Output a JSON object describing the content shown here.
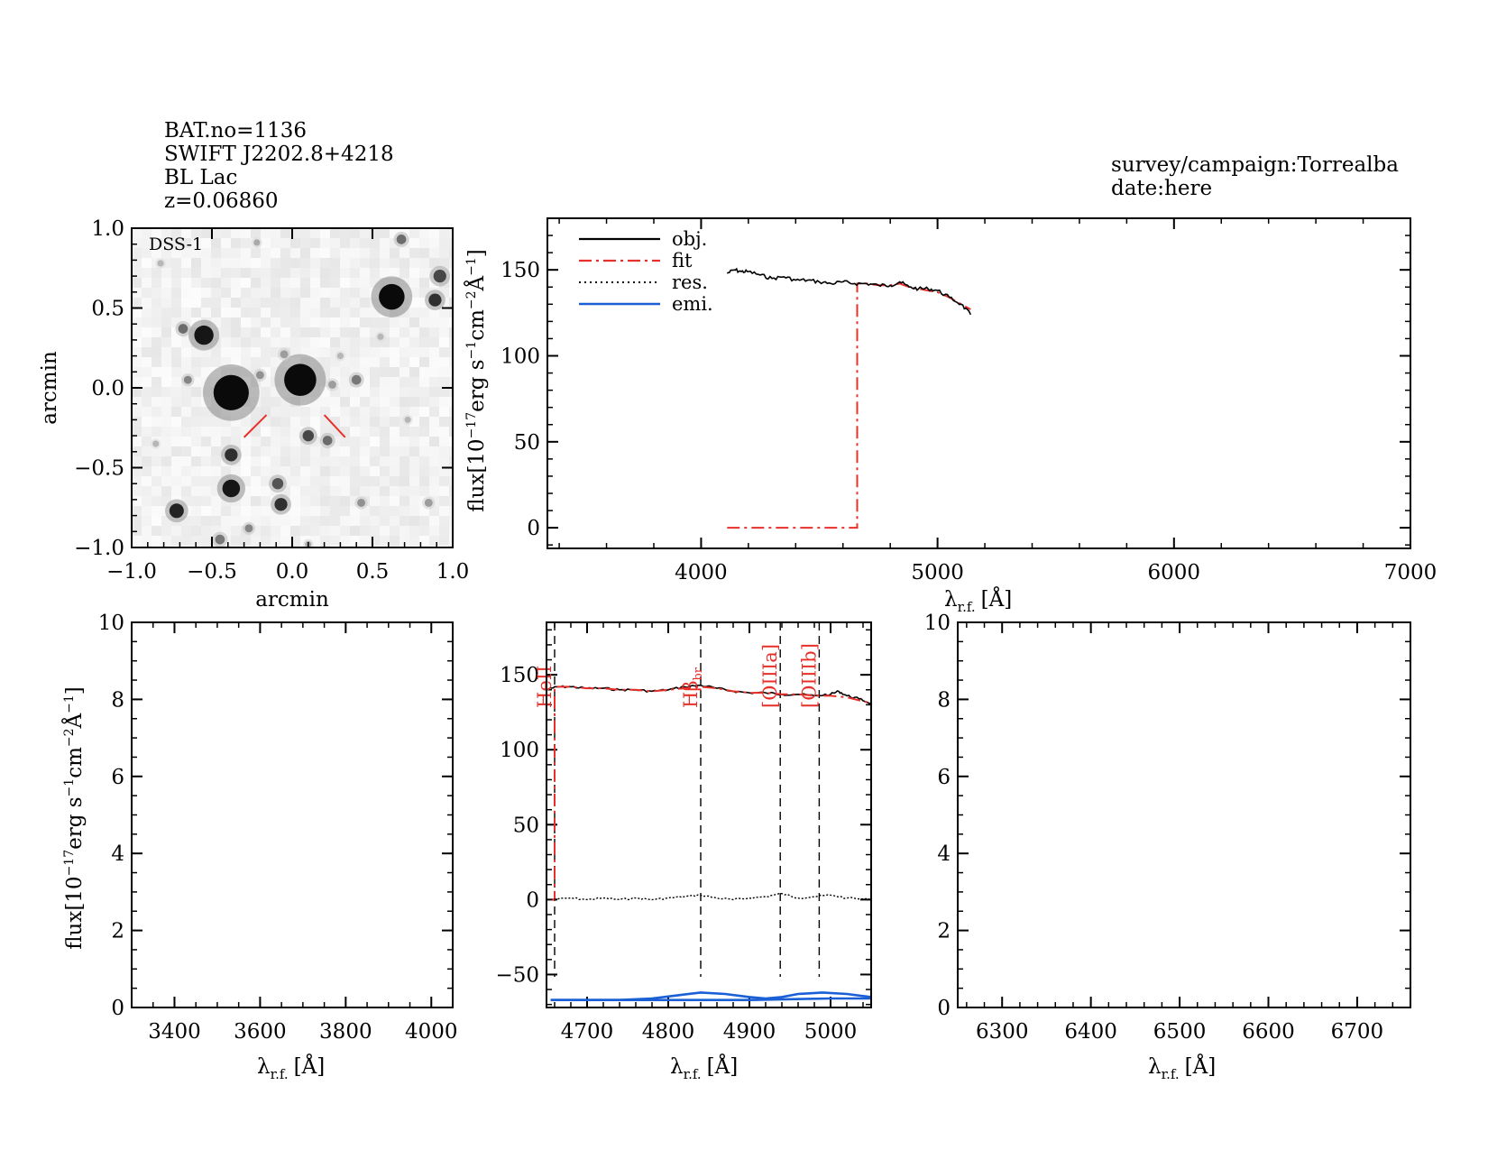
{
  "header": {
    "lines": [
      "BAT.no=1136",
      "SWIFT J2202.8+4218",
      "BL Lac",
      "z=0.06860"
    ],
    "survey": "survey/campaign:Torrealba",
    "date": "date:here"
  },
  "colors": {
    "object": "#000000",
    "fit": "#e8302a",
    "residual": "#000000",
    "emission": "#1a5fd6",
    "marker": "#e8302a"
  },
  "chart_data": [
    {
      "id": "image",
      "type": "heatmap",
      "label": "DSS-1",
      "xlabel": "arcmin",
      "ylabel": "arcmin",
      "xlim": [
        -1.0,
        1.0
      ],
      "ylim": [
        -1.0,
        1.0
      ],
      "xticks": [
        "−1.0",
        "−0.5",
        "0.0",
        "0.5",
        "1.0"
      ],
      "yticks": [
        "−1.0",
        "−0.5",
        "0.0",
        "0.5",
        "1.0"
      ],
      "sources": [
        {
          "x": -0.38,
          "y": -0.03,
          "r": 0.11,
          "i": 1.0
        },
        {
          "x": 0.05,
          "y": 0.05,
          "r": 0.1,
          "i": 1.0
        },
        {
          "x": 0.62,
          "y": 0.57,
          "r": 0.08,
          "i": 1.0
        },
        {
          "x": -0.55,
          "y": 0.33,
          "r": 0.06,
          "i": 0.95
        },
        {
          "x": -0.38,
          "y": -0.63,
          "r": 0.055,
          "i": 0.95
        },
        {
          "x": -0.72,
          "y": -0.77,
          "r": 0.045,
          "i": 0.9
        },
        {
          "x": -0.38,
          "y": -0.42,
          "r": 0.04,
          "i": 0.85
        },
        {
          "x": -0.07,
          "y": -0.73,
          "r": 0.04,
          "i": 0.85
        },
        {
          "x": -0.09,
          "y": -0.6,
          "r": 0.035,
          "i": 0.7
        },
        {
          "x": 0.1,
          "y": -0.3,
          "r": 0.035,
          "i": 0.75
        },
        {
          "x": 0.22,
          "y": -0.33,
          "r": 0.03,
          "i": 0.6
        },
        {
          "x": 0.89,
          "y": 0.55,
          "r": 0.04,
          "i": 0.85
        },
        {
          "x": 0.92,
          "y": 0.7,
          "r": 0.04,
          "i": 0.75
        },
        {
          "x": 0.68,
          "y": 0.93,
          "r": 0.03,
          "i": 0.6
        },
        {
          "x": -0.68,
          "y": 0.37,
          "r": 0.03,
          "i": 0.6
        },
        {
          "x": 0.4,
          "y": 0.05,
          "r": 0.03,
          "i": 0.55
        },
        {
          "x": -0.65,
          "y": 0.05,
          "r": 0.025,
          "i": 0.5
        },
        {
          "x": -0.05,
          "y": 0.21,
          "r": 0.025,
          "i": 0.4
        },
        {
          "x": -0.2,
          "y": 0.08,
          "r": 0.025,
          "i": 0.45
        },
        {
          "x": 0.25,
          "y": 0.02,
          "r": 0.025,
          "i": 0.4
        },
        {
          "x": 0.43,
          "y": -0.72,
          "r": 0.025,
          "i": 0.45
        },
        {
          "x": -0.45,
          "y": -0.95,
          "r": 0.03,
          "i": 0.55
        },
        {
          "x": -0.27,
          "y": -0.88,
          "r": 0.025,
          "i": 0.5
        },
        {
          "x": 0.85,
          "y": -0.72,
          "r": 0.025,
          "i": 0.4
        },
        {
          "x": -0.22,
          "y": 0.91,
          "r": 0.02,
          "i": 0.35
        },
        {
          "x": 0.3,
          "y": 0.2,
          "r": 0.02,
          "i": 0.3
        },
        {
          "x": -0.85,
          "y": -0.35,
          "r": 0.02,
          "i": 0.3
        },
        {
          "x": 0.72,
          "y": -0.2,
          "r": 0.02,
          "i": 0.3
        },
        {
          "x": 0.55,
          "y": 0.32,
          "r": 0.02,
          "i": 0.3
        },
        {
          "x": -0.82,
          "y": 0.78,
          "r": 0.02,
          "i": 0.3
        },
        {
          "x": 0.1,
          "y": -0.98,
          "r": 0.02,
          "i": 0.35
        }
      ],
      "markers": [
        {
          "x1": -0.16,
          "y1": -0.17,
          "x2": -0.3,
          "y2": -0.31
        },
        {
          "x1": 0.2,
          "y1": -0.17,
          "x2": 0.33,
          "y2": -0.31
        }
      ]
    },
    {
      "id": "main",
      "type": "line",
      "xlabel": "λ",
      "xlabel_sub": "r.f.",
      "xlabel_unit": "[Å]",
      "ylabel": "flux[10",
      "ylabel_exp1": "−17",
      "ylabel_mid": "erg s",
      "ylabel_exp2": "−1",
      "ylabel_cm": "cm",
      "ylabel_exp3": "−2",
      "ylabel_ang": "Å",
      "ylabel_exp4": "−1",
      "ylabel_end": "]",
      "xlim": [
        3350,
        7000
      ],
      "ylim": [
        -12,
        180
      ],
      "xticks": [
        {
          "v": 4000,
          "l": "4000"
        },
        {
          "v": 5000,
          "l": "5000"
        },
        {
          "v": 6000,
          "l": "6000"
        },
        {
          "v": 7000,
          "l": "7000"
        }
      ],
      "yticks": [
        {
          "v": 0,
          "l": "0"
        },
        {
          "v": 50,
          "l": "50"
        },
        {
          "v": 100,
          "l": "100"
        },
        {
          "v": 150,
          "l": "150"
        }
      ],
      "legend": [
        {
          "label": "obj.",
          "style": "solid",
          "color": "#000000"
        },
        {
          "label": "fit",
          "style": "dashdot",
          "color": "#e8302a"
        },
        {
          "label": "res.",
          "style": "dotted",
          "color": "#000000"
        },
        {
          "label": "emi.",
          "style": "solid",
          "color": "#1a5fd6"
        }
      ],
      "series": [
        {
          "name": "obj.",
          "x": [
            4110,
            4140,
            4170,
            4200,
            4250,
            4300,
            4350,
            4400,
            4450,
            4500,
            4550,
            4600,
            4650,
            4700,
            4750,
            4800,
            4840,
            4880,
            4920,
            4960,
            5000,
            5050,
            5100,
            5140
          ],
          "y": [
            148,
            150,
            149,
            149,
            147,
            145,
            146,
            144,
            144,
            143,
            142,
            143,
            142,
            142,
            141,
            141,
            143,
            140,
            139,
            139,
            138,
            134,
            130,
            124
          ]
        },
        {
          "name": "fit",
          "x": [
            4110,
            4660,
            4660,
            4700,
            4750,
            4800,
            4840,
            4880,
            4920,
            4960,
            5000,
            5050,
            5100,
            5140
          ],
          "y": [
            0,
            0,
            142,
            142,
            141,
            141,
            142,
            140,
            139,
            138,
            137,
            134,
            130,
            127
          ]
        }
      ]
    },
    {
      "id": "left",
      "type": "line",
      "xlabel": "λ",
      "xlabel_sub": "r.f.",
      "xlabel_unit": "[Å]",
      "ylabel": "flux[10",
      "ylabel_exp1": "−17",
      "ylabel_mid": "erg s",
      "ylabel_exp2": "−1",
      "ylabel_cm": "cm",
      "ylabel_exp3": "−2",
      "ylabel_ang": "Å",
      "ylabel_exp4": "−1",
      "ylabel_end": "]",
      "xlim": [
        3300,
        4050
      ],
      "ylim": [
        0,
        10
      ],
      "xticks": [
        {
          "v": 3400,
          "l": "3400"
        },
        {
          "v": 3600,
          "l": "3600"
        },
        {
          "v": 3800,
          "l": "3800"
        },
        {
          "v": 4000,
          "l": "4000"
        }
      ],
      "yticks": [
        {
          "v": 0,
          "l": "0"
        },
        {
          "v": 2,
          "l": "2"
        },
        {
          "v": 4,
          "l": "4"
        },
        {
          "v": 6,
          "l": "6"
        },
        {
          "v": 8,
          "l": "8"
        },
        {
          "v": 10,
          "l": "10"
        }
      ],
      "series": []
    },
    {
      "id": "center",
      "type": "line",
      "xlabel": "λ",
      "xlabel_sub": "r.f.",
      "xlabel_unit": "[Å]",
      "xlim": [
        4650,
        5050
      ],
      "ylim": [
        -72,
        185
      ],
      "xticks": [
        {
          "v": 4700,
          "l": "4700"
        },
        {
          "v": 4800,
          "l": "4800"
        },
        {
          "v": 4900,
          "l": "4900"
        },
        {
          "v": 5000,
          "l": "5000"
        }
      ],
      "yticks": [
        {
          "v": -50,
          "l": "−50"
        },
        {
          "v": 0,
          "l": "0"
        },
        {
          "v": 50,
          "l": "50"
        },
        {
          "v": 100,
          "l": "100"
        },
        {
          "v": 150,
          "l": "150"
        }
      ],
      "lines": [
        {
          "x": 4660,
          "label": "HeII",
          "sub": ""
        },
        {
          "x": 4840,
          "label": "Hβ",
          "sub": "br"
        },
        {
          "x": 4938,
          "label": "[OIIIa]",
          "sub": ""
        },
        {
          "x": 4986,
          "label": "[OIIIb]",
          "sub": ""
        }
      ],
      "series": [
        {
          "name": "obj.",
          "x": [
            4655,
            4665,
            4680,
            4700,
            4720,
            4740,
            4760,
            4780,
            4800,
            4820,
            4840,
            4860,
            4880,
            4900,
            4920,
            4940,
            4960,
            4980,
            5000,
            5010,
            5020,
            5035,
            5050
          ],
          "y": [
            141,
            142,
            142,
            141,
            141,
            140,
            140,
            139,
            140,
            142,
            143,
            141,
            139,
            138,
            138,
            137,
            137,
            136,
            137,
            139,
            136,
            134,
            131
          ]
        },
        {
          "name": "fit",
          "x": [
            4655,
            4660,
            4660,
            4665,
            4680,
            4700,
            4720,
            4740,
            4760,
            4780,
            4800,
            4820,
            4840,
            4860,
            4880,
            4900,
            4920,
            4940,
            4960,
            4980,
            5000,
            5020,
            5035,
            5050
          ],
          "y": [
            0,
            0,
            142,
            142,
            142,
            141,
            141,
            140,
            140,
            139,
            140,
            141,
            142,
            141,
            139,
            138,
            138,
            137,
            137,
            136,
            136,
            135,
            133,
            131
          ]
        },
        {
          "name": "res.",
          "x": [
            4655,
            4680,
            4700,
            4720,
            4740,
            4760,
            4780,
            4800,
            4820,
            4840,
            4860,
            4880,
            4900,
            4920,
            4940,
            4960,
            4980,
            5000,
            5020,
            5050
          ],
          "y": [
            0,
            1,
            0,
            1,
            0,
            1,
            0,
            1,
            2,
            3,
            1,
            0,
            1,
            2,
            4,
            1,
            2,
            3,
            1,
            0
          ]
        },
        {
          "name": "emi.",
          "x": [
            4655,
            4700,
            4740,
            4780,
            4810,
            4840,
            4870,
            4900,
            4920,
            4940,
            4960,
            4990,
            5020,
            5050
          ],
          "y": [
            -67,
            -67,
            -67,
            -66,
            -64,
            -62,
            -63,
            -65,
            -66,
            -65,
            -63,
            -62,
            -63,
            -65
          ]
        },
        {
          "name": "emi.",
          "x": [
            4655,
            4700,
            4800,
            4900,
            5000,
            5050
          ],
          "y": [
            -67,
            -67,
            -67,
            -67,
            -66,
            -66
          ]
        }
      ]
    },
    {
      "id": "right",
      "type": "line",
      "xlabel": "λ",
      "xlabel_sub": "r.f.",
      "xlabel_unit": "[Å]",
      "xlim": [
        6250,
        6760
      ],
      "ylim": [
        0,
        10
      ],
      "xticks": [
        {
          "v": 6300,
          "l": "6300"
        },
        {
          "v": 6400,
          "l": "6400"
        },
        {
          "v": 6500,
          "l": "6500"
        },
        {
          "v": 6600,
          "l": "6600"
        },
        {
          "v": 6700,
          "l": "6700"
        }
      ],
      "yticks": [
        {
          "v": 0,
          "l": "0"
        },
        {
          "v": 2,
          "l": "2"
        },
        {
          "v": 4,
          "l": "4"
        },
        {
          "v": 6,
          "l": "6"
        },
        {
          "v": 8,
          "l": "8"
        },
        {
          "v": 10,
          "l": "10"
        }
      ],
      "series": []
    }
  ]
}
